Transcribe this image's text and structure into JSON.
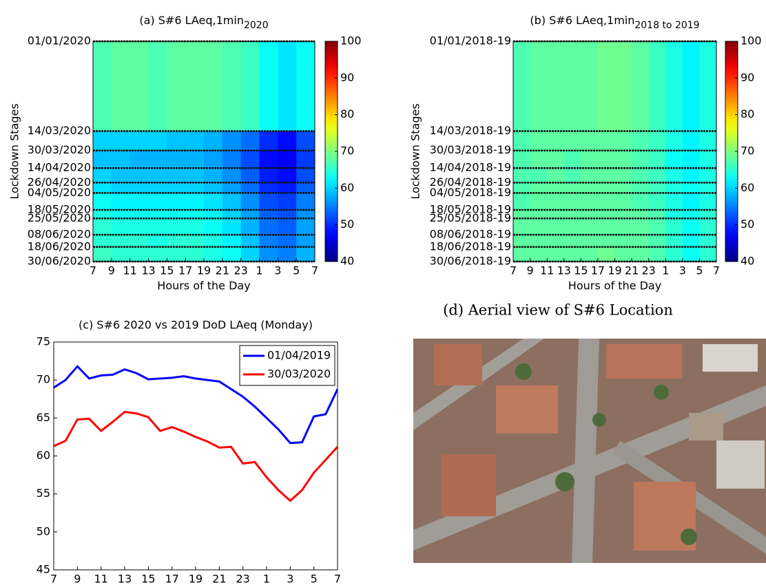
{
  "chart_data": [
    {
      "type": "heatmap",
      "title": "(a) S#6 LAeq,1min",
      "title_subscript": "2020",
      "x_label": "Hours of the Day",
      "y_label": "Lockdown Stages",
      "xlim": [
        7,
        31
      ],
      "xticks": [
        7,
        9,
        11,
        13,
        15,
        17,
        19,
        21,
        23,
        {
          "value": 25,
          "label": "1"
        },
        {
          "value": 27,
          "label": "3"
        },
        {
          "value": 29,
          "label": "5"
        },
        {
          "value": 31,
          "label": "7"
        }
      ],
      "rows": [
        "01/01/2020",
        "14/03/2020",
        "30/03/2020",
        "14/04/2020",
        "26/04/2020",
        "04/05/2020",
        "18/05/2020",
        "25/05/2020",
        "08/06/2020",
        "18/06/2020",
        "30/06/2020"
      ],
      "values": [
        [
          67,
          68,
          68,
          67,
          68,
          68,
          68,
          67,
          66,
          63,
          61,
          63
        ],
        [
          60,
          60,
          60,
          60,
          59,
          59,
          58,
          56,
          54,
          50,
          48,
          52
        ],
        [
          59,
          59,
          58,
          58,
          58,
          58,
          57,
          55,
          52,
          48,
          47,
          51
        ],
        [
          60,
          59,
          59,
          59,
          59,
          59,
          58,
          56,
          53,
          49,
          48,
          52
        ],
        [
          61,
          60,
          60,
          60,
          60,
          60,
          59,
          57,
          54,
          50,
          49,
          53
        ],
        [
          63,
          62,
          62,
          62,
          62,
          62,
          61,
          59,
          56,
          52,
          51,
          55
        ],
        [
          64,
          63,
          63,
          63,
          63,
          63,
          62,
          60,
          57,
          53,
          52,
          56
        ],
        [
          65,
          64,
          64,
          64,
          64,
          64,
          63,
          61,
          58,
          54,
          53,
          57
        ],
        [
          65,
          65,
          65,
          64,
          65,
          65,
          64,
          62,
          59,
          55,
          54,
          57
        ],
        [
          66,
          65,
          65,
          65,
          65,
          65,
          64,
          63,
          60,
          56,
          55,
          58
        ]
      ],
      "colormap": "jet",
      "zlim": [
        40,
        100
      ],
      "zticks": [
        40,
        50,
        60,
        70,
        80,
        90,
        100
      ]
    },
    {
      "type": "heatmap",
      "title": "(b) S#6 LAeq,1min",
      "title_subscript": "2018 to 2019",
      "x_label": "Hours of the Day",
      "y_label": "Lockdown Stages",
      "xlim": [
        7,
        31
      ],
      "xticks": [
        7,
        9,
        11,
        13,
        15,
        17,
        19,
        21,
        23,
        {
          "value": 25,
          "label": "1"
        },
        {
          "value": 27,
          "label": "3"
        },
        {
          "value": 29,
          "label": "5"
        },
        {
          "value": 31,
          "label": "7"
        }
      ],
      "rows": [
        "01/01/2018-19",
        "14/03/2018-19",
        "30/03/2018-19",
        "14/04/2018-19",
        "26/04/2018-19",
        "04/05/2018-19",
        "18/05/2018-19",
        "25/05/2018-19",
        "08/06/2018-19",
        "18/06/2018-19",
        "30/06/2018-19"
      ],
      "values": [
        [
          67,
          68,
          68,
          68,
          68,
          69,
          69,
          68,
          66,
          64,
          62,
          64
        ],
        [
          67,
          68,
          68,
          68,
          68,
          68,
          68,
          67,
          66,
          64,
          62,
          64
        ],
        [
          67,
          68,
          68,
          67,
          68,
          68,
          68,
          67,
          66,
          63,
          62,
          64
        ],
        [
          67,
          67,
          68,
          67,
          68,
          68,
          68,
          67,
          66,
          64,
          62,
          64
        ],
        [
          67,
          68,
          68,
          68,
          68,
          68,
          68,
          67,
          66,
          64,
          63,
          64
        ],
        [
          67,
          68,
          68,
          68,
          68,
          68,
          68,
          67,
          66,
          64,
          62,
          64
        ],
        [
          68,
          68,
          68,
          68,
          68,
          68,
          68,
          68,
          67,
          64,
          63,
          65
        ],
        [
          68,
          68,
          68,
          68,
          68,
          68,
          68,
          68,
          67,
          65,
          63,
          65
        ],
        [
          68,
          68,
          68,
          68,
          68,
          68,
          68,
          68,
          67,
          65,
          63,
          65
        ],
        [
          68,
          68,
          68,
          68,
          68,
          69,
          68,
          68,
          67,
          65,
          63,
          65
        ]
      ],
      "colormap": "jet",
      "zlim": [
        40,
        100
      ],
      "zticks": [
        40,
        50,
        60,
        70,
        80,
        90,
        100
      ]
    },
    {
      "type": "line",
      "title": "(c) S#6 2020 vs 2019 DoD LAeq (Monday)",
      "x": [
        7,
        8,
        9,
        10,
        11,
        12,
        13,
        14,
        15,
        16,
        17,
        18,
        19,
        20,
        21,
        22,
        23,
        24,
        25,
        26,
        27,
        28,
        29,
        30,
        31
      ],
      "xlim": [
        7,
        31
      ],
      "xticks": [
        7,
        9,
        11,
        13,
        15,
        17,
        19,
        21,
        23,
        {
          "value": 25,
          "label": "1"
        },
        {
          "value": 27,
          "label": "3"
        },
        {
          "value": 29,
          "label": "5"
        },
        {
          "value": 31,
          "label": "7"
        }
      ],
      "ylim": [
        45,
        75
      ],
      "yticks": [
        45,
        50,
        55,
        60,
        65,
        70,
        75
      ],
      "legend": "upper right",
      "series": [
        {
          "name": "01/04/2019",
          "color": "#0000ff",
          "values": [
            69,
            70,
            71.8,
            70.2,
            70.6,
            70.7,
            71.4,
            70.9,
            70.1,
            70.2,
            70.3,
            70.5,
            70.2,
            70,
            69.8,
            68.8,
            67.8,
            66.5,
            65,
            63.5,
            61.7,
            61.8,
            65.2,
            65.5,
            68.8
          ]
        },
        {
          "name": "30/03/2020",
          "color": "#ff0000",
          "values": [
            61.3,
            62,
            64.8,
            64.9,
            63.3,
            64.5,
            65.8,
            65.6,
            65.1,
            63.3,
            63.8,
            63.2,
            62.5,
            61.9,
            61.1,
            61.2,
            59,
            59.2,
            57.2,
            55.5,
            54.1,
            55.5,
            57.8,
            59.5,
            61.2
          ]
        }
      ]
    }
  ],
  "image": {
    "caption": "(d) Aerial view of S#6 Location"
  }
}
